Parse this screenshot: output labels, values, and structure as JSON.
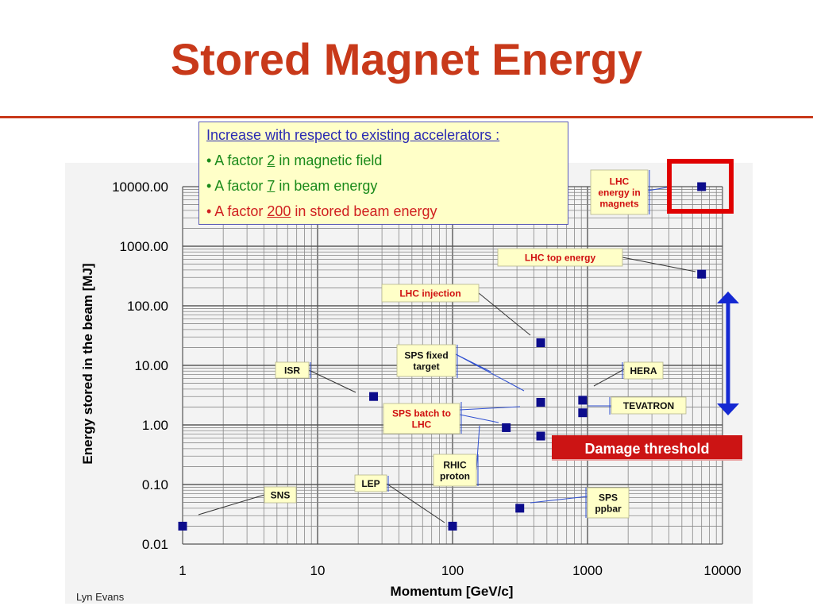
{
  "slide": {
    "title": "Stored Magnet Energy",
    "credit": "Lyn Evans",
    "colors": {
      "title": "#c8391a",
      "marker": "#0c0c8c",
      "callout_fill": "#ffffc8",
      "damage": "#cc1414",
      "arrow": "#1428d2",
      "highlight": "#e00000"
    }
  },
  "infobox": {
    "title": "Increase with respect to existing accelerators :",
    "bullets": [
      {
        "pre": "• A factor ",
        "num": "2",
        "post": " in magnetic field",
        "color": "#1a8a1a"
      },
      {
        "pre": "• A factor ",
        "num": "7",
        "post": " in beam energy",
        "color": "#1a8a1a"
      },
      {
        "pre": "• A factor ",
        "num": "200",
        "post": " in stored beam energy",
        "color": "#d02020"
      }
    ]
  },
  "damage_label": "Damage threshold",
  "chart_data": {
    "type": "scatter",
    "xlabel": "Momentum [GeV/c]",
    "ylabel": "Energy stored in the beam [MJ]",
    "xscale": "log",
    "yscale": "log",
    "xlim": [
      1,
      10000
    ],
    "ylim": [
      0.01,
      10000
    ],
    "grid": true,
    "xticks": [
      "1",
      "10",
      "100",
      "1000",
      "10000"
    ],
    "yticks": [
      "0.01",
      "0.10",
      "1.00",
      "10.00",
      "100.00",
      "1000.00",
      "10000.00"
    ],
    "points": [
      {
        "label": "SNS",
        "x": 1,
        "y": 0.02
      },
      {
        "label": "ISR",
        "x": 26,
        "y": 3
      },
      {
        "label": "LEP",
        "x": 100,
        "y": 0.02
      },
      {
        "label": "RHIC proton",
        "x": 250,
        "y": 0.9
      },
      {
        "label": "SPS ppbar",
        "x": 315,
        "y": 0.04
      },
      {
        "label": "SPS batch to LHC",
        "x": 450,
        "y": 0.65
      },
      {
        "label": "SPS fixed target",
        "x": 450,
        "y": 2.4
      },
      {
        "label": "LHC injection",
        "x": 450,
        "y": 24
      },
      {
        "label": "TEVATRON",
        "x": 920,
        "y": 1.6
      },
      {
        "label": "HERA",
        "x": 920,
        "y": 2.6
      },
      {
        "label": "LHC top energy",
        "x": 7000,
        "y": 340
      },
      {
        "label": "LHC energy in magnets",
        "x": 7000,
        "y": 10000
      }
    ],
    "annotations": [
      {
        "lines": [
          "SNS"
        ]
      },
      {
        "lines": [
          "ISR"
        ]
      },
      {
        "lines": [
          "LEP"
        ]
      },
      {
        "lines": [
          "RHIC",
          "proton"
        ]
      },
      {
        "lines": [
          "SPS",
          "ppbar"
        ]
      },
      {
        "lines": [
          "SPS batch to",
          "LHC"
        ]
      },
      {
        "lines": [
          "SPS fixed",
          "target"
        ]
      },
      {
        "lines": [
          "LHC injection"
        ]
      },
      {
        "lines": [
          "TEVATRON"
        ]
      },
      {
        "lines": [
          "HERA"
        ]
      },
      {
        "lines": [
          "LHC top energy"
        ]
      },
      {
        "lines": [
          "LHC",
          "energy in",
          "magnets"
        ]
      }
    ]
  }
}
